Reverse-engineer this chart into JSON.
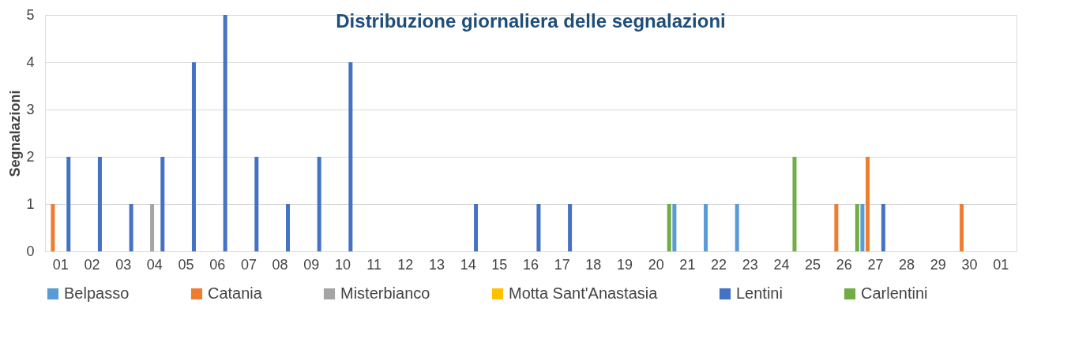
{
  "chart_data": {
    "type": "bar",
    "title": "Distribuzione giornaliera delle segnalazioni",
    "ylabel": "Segnalazioni",
    "categories": [
      "01",
      "02",
      "03",
      "04",
      "05",
      "06",
      "07",
      "08",
      "09",
      "10",
      "11",
      "12",
      "13",
      "14",
      "15",
      "16",
      "17",
      "18",
      "19",
      "20",
      "21",
      "22",
      "23",
      "24",
      "25",
      "26",
      "27",
      "28",
      "29",
      "30",
      "01"
    ],
    "series": [
      {
        "name": "Belpasso",
        "color": "#5b9bd5",
        "values": [
          null,
          null,
          null,
          null,
          null,
          null,
          null,
          null,
          null,
          null,
          null,
          null,
          null,
          null,
          null,
          null,
          null,
          null,
          null,
          null,
          1,
          1,
          1,
          null,
          null,
          null,
          1,
          null,
          null,
          null,
          null
        ]
      },
      {
        "name": "Catania",
        "color": "#ed7d31",
        "values": [
          1,
          null,
          null,
          null,
          null,
          null,
          null,
          null,
          null,
          null,
          null,
          null,
          null,
          null,
          null,
          null,
          null,
          null,
          null,
          null,
          null,
          null,
          null,
          null,
          null,
          1,
          2,
          null,
          null,
          1,
          null
        ]
      },
      {
        "name": "Misterbianco",
        "color": "#a5a5a5",
        "values": [
          null,
          null,
          null,
          1,
          null,
          null,
          null,
          null,
          null,
          null,
          null,
          null,
          null,
          null,
          null,
          null,
          null,
          null,
          null,
          null,
          null,
          null,
          null,
          null,
          null,
          null,
          null,
          null,
          null,
          null,
          null
        ]
      },
      {
        "name": "Motta Sant'Anastasia",
        "color": "#ffc000",
        "values": [
          null,
          null,
          null,
          null,
          null,
          null,
          null,
          null,
          null,
          null,
          null,
          null,
          null,
          null,
          null,
          null,
          null,
          null,
          null,
          null,
          null,
          null,
          null,
          null,
          null,
          null,
          null,
          null,
          null,
          null,
          null
        ]
      },
      {
        "name": "Lentini",
        "color": "#4472c4",
        "values": [
          2,
          2,
          1,
          2,
          4,
          5,
          2,
          1,
          2,
          4,
          null,
          null,
          null,
          1,
          null,
          1,
          1,
          null,
          null,
          null,
          null,
          null,
          null,
          null,
          null,
          null,
          1,
          null,
          null,
          null,
          null
        ]
      },
      {
        "name": "Carlentini",
        "color": "#70ad47",
        "values": [
          null,
          null,
          null,
          null,
          null,
          null,
          null,
          null,
          null,
          null,
          null,
          null,
          null,
          null,
          null,
          null,
          null,
          null,
          null,
          1,
          null,
          null,
          null,
          2,
          null,
          1,
          null,
          null,
          null,
          null,
          null
        ]
      }
    ],
    "ylim": [
      0,
      5
    ],
    "yticks": [
      0,
      1,
      2,
      3,
      4,
      5
    ],
    "grid": "y",
    "legend": "bottom"
  }
}
